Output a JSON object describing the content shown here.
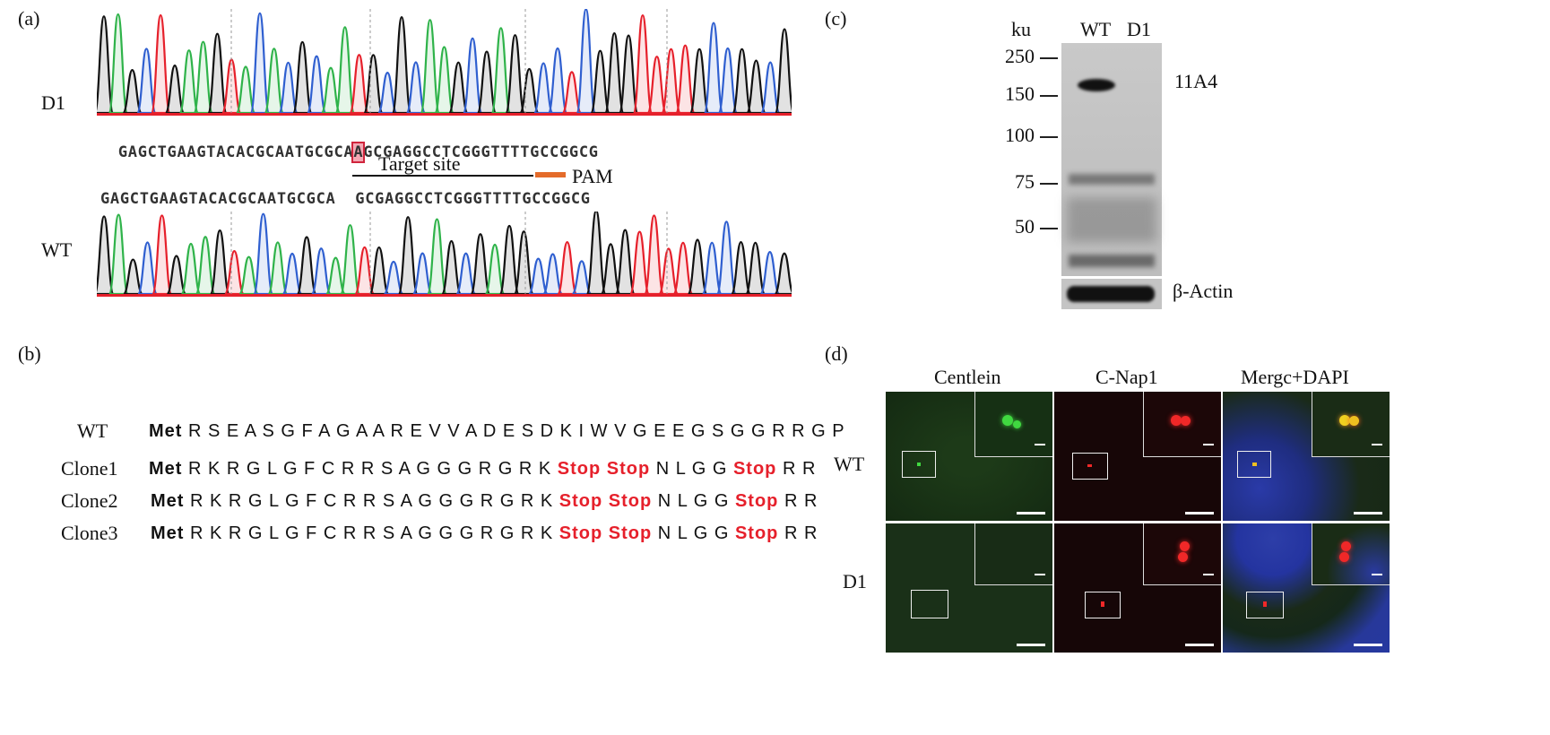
{
  "panel_labels": {
    "a": "(a)",
    "b": "(b)",
    "c": "(c)",
    "d": "(d)"
  },
  "chromatogram": {
    "d1_label": "D1",
    "wt_label": "WT",
    "d1_sequence": "GAGCTGAAGTACACGCAATGCGCAAGCGAGGCCTCGGGTTTTGCCGGCG",
    "highlight_base": "A",
    "wt_sequence": "GAGCTGAAGTACACGCAATGCGCA  GCGAGGCCTCGGGTTTTGCCGGCG",
    "target_site_label": "Target site",
    "pam_label": "PAM",
    "colors": {
      "A": "#2fb34a",
      "C": "#2f5fd0",
      "G": "#111111",
      "T": "#e6202b",
      "pam": "#e46b2a"
    }
  },
  "protein": {
    "rows": [
      {
        "name": "WT",
        "met": "Met",
        "segments": [
          {
            "text": "RSEASGFAGAAREVVADESDKIWVGEEGSGGRRGP",
            "stop": false
          }
        ]
      },
      {
        "name": "Clone1",
        "met": "Met",
        "segments": [
          {
            "text": "RKRGLGFCRRSAGGGRGRK",
            "stop": false
          },
          {
            "text": "Stop Stop",
            "stop": true
          },
          {
            "text": "NLGG",
            "stop": false
          },
          {
            "text": "Stop",
            "stop": true
          },
          {
            "text": "RR",
            "stop": false
          }
        ]
      },
      {
        "name": "Clone2",
        "met": "Met",
        "segments": [
          {
            "text": "RKRGLGFCRRSAGGGRGRK",
            "stop": false
          },
          {
            "text": "Stop Stop",
            "stop": true
          },
          {
            "text": "NLGG",
            "stop": false
          },
          {
            "text": "Stop",
            "stop": true
          },
          {
            "text": "RR",
            "stop": false
          }
        ]
      },
      {
        "name": "Clone3",
        "met": "Met",
        "segments": [
          {
            "text": "RKRGLGFCRRSAGGGRGRK",
            "stop": false
          },
          {
            "text": "Stop Stop",
            "stop": true
          },
          {
            "text": "NLGG",
            "stop": false
          },
          {
            "text": "Stop",
            "stop": true
          },
          {
            "text": "RR",
            "stop": false
          }
        ]
      }
    ]
  },
  "western": {
    "unit": "ku",
    "lanes": [
      "WT",
      "D1"
    ],
    "markers": [
      "250",
      "150",
      "100",
      "75",
      "50"
    ],
    "band_label": "11A4",
    "loading_label": "β-Actin"
  },
  "microscopy": {
    "columns": [
      "Centlein",
      "C-Nap1",
      "Mergc+DAPI"
    ],
    "rows": [
      "WT",
      "D1"
    ]
  }
}
